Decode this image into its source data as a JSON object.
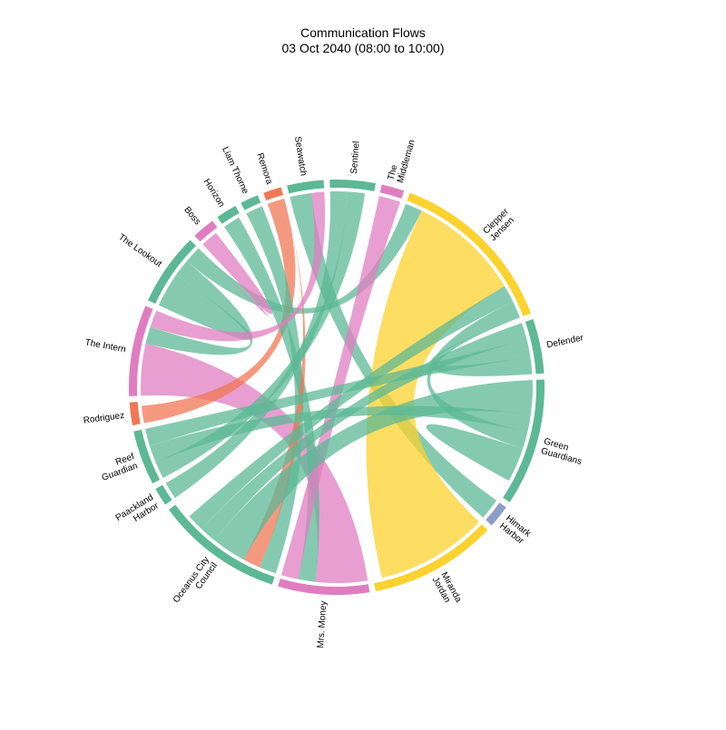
{
  "chart_data": {
    "type": "chord",
    "title": "Communication Flows",
    "subtitle": "03 Oct 2040 (08:00 to 10:00)",
    "nodes": [
      {
        "id": "intern",
        "label": [
          "The Intern"
        ],
        "color": "#E07DC0",
        "weight": 10
      },
      {
        "id": "lookout",
        "label": [
          "The Lookout"
        ],
        "color": "#5CB895",
        "weight": 8
      },
      {
        "id": "boss",
        "label": [
          "Boss"
        ],
        "color": "#E07DC0",
        "weight": 2.5
      },
      {
        "id": "horizon",
        "label": [
          "Horizon"
        ],
        "color": "#5CB895",
        "weight": 2.3
      },
      {
        "id": "liam",
        "label": [
          "Liam Thorne"
        ],
        "color": "#5CB895",
        "weight": 2
      },
      {
        "id": "remora",
        "label": [
          "Remora"
        ],
        "color": "#F07755",
        "weight": 2
      },
      {
        "id": "seawatch",
        "label": [
          "Seawatch"
        ],
        "color": "#5CB895",
        "weight": 4
      },
      {
        "id": "sentinel",
        "label": [
          "Sentinel"
        ],
        "color": "#5CB895",
        "weight": 5
      },
      {
        "id": "middleman",
        "label": [
          "The",
          "Middleman"
        ],
        "color": "#E07DC0",
        "weight": 2.5
      },
      {
        "id": "clepper",
        "label": [
          "Clepper",
          "Jensen"
        ],
        "color": "#FCD22E",
        "weight": 19
      },
      {
        "id": "defender",
        "label": [
          "Defender"
        ],
        "color": "#5CB895",
        "weight": 6
      },
      {
        "id": "green",
        "label": [
          "Green",
          "Guardians"
        ],
        "color": "#5CB895",
        "weight": 14
      },
      {
        "id": "himark",
        "label": [
          "Himark",
          "Harbor"
        ],
        "color": "#8D9DCB",
        "weight": 2.5
      },
      {
        "id": "miranda",
        "label": [
          "Miranda",
          "Jordan"
        ],
        "color": "#FCD22E",
        "weight": 14
      },
      {
        "id": "money",
        "label": [
          "Mrs. Money"
        ],
        "color": "#E07DC0",
        "weight": 10
      },
      {
        "id": "oceanus",
        "label": [
          "Oceanus City",
          "Council"
        ],
        "color": "#5CB895",
        "weight": 14
      },
      {
        "id": "paackland",
        "label": [
          "Paackland",
          "Harbor"
        ],
        "color": "#5CB895",
        "weight": 2
      },
      {
        "id": "reef",
        "label": [
          "Reef",
          "Guardian"
        ],
        "color": "#5CB895",
        "weight": 6
      },
      {
        "id": "rodriguez",
        "label": [
          "Rodriguez"
        ],
        "color": "#F07755",
        "weight": 2.5
      }
    ],
    "links": [
      {
        "source": "intern",
        "target": "money",
        "value": 6
      },
      {
        "source": "lookout",
        "target": "lookout",
        "value": 2
      },
      {
        "source": "lookout",
        "target": "intern",
        "value": 2
      },
      {
        "source": "lookout",
        "target": "clepper",
        "value": 2
      },
      {
        "source": "boss",
        "target": "lookout",
        "value": 2
      },
      {
        "source": "rodriguez",
        "target": "remora",
        "value": 2
      },
      {
        "source": "horizon",
        "target": "money",
        "value": 2
      },
      {
        "source": "liam",
        "target": "oceanus",
        "value": 2
      },
      {
        "source": "remora",
        "target": "oceanus",
        "value": 2
      },
      {
        "source": "seawatch",
        "target": "himark",
        "value": 2.5
      },
      {
        "source": "sentinel",
        "target": "paackland",
        "value": 2
      },
      {
        "source": "sentinel",
        "target": "reef",
        "value": 2
      },
      {
        "source": "middleman",
        "target": "money",
        "value": 2.5
      },
      {
        "source": "miranda",
        "target": "clepper",
        "value": 13
      },
      {
        "source": "oceanus",
        "target": "green",
        "value": 4
      },
      {
        "source": "oceanus",
        "target": "defender",
        "value": 2
      },
      {
        "source": "oceanus",
        "target": "clepper",
        "value": 2
      },
      {
        "source": "reef",
        "target": "green",
        "value": 2
      },
      {
        "source": "reef",
        "target": "defender",
        "value": 2
      },
      {
        "source": "green",
        "target": "clepper",
        "value": 2
      },
      {
        "source": "defender",
        "target": "clepper",
        "value": 2
      },
      {
        "source": "green",
        "target": "green",
        "value": 2
      },
      {
        "source": "intern",
        "target": "seawatch",
        "value": 2
      }
    ]
  }
}
